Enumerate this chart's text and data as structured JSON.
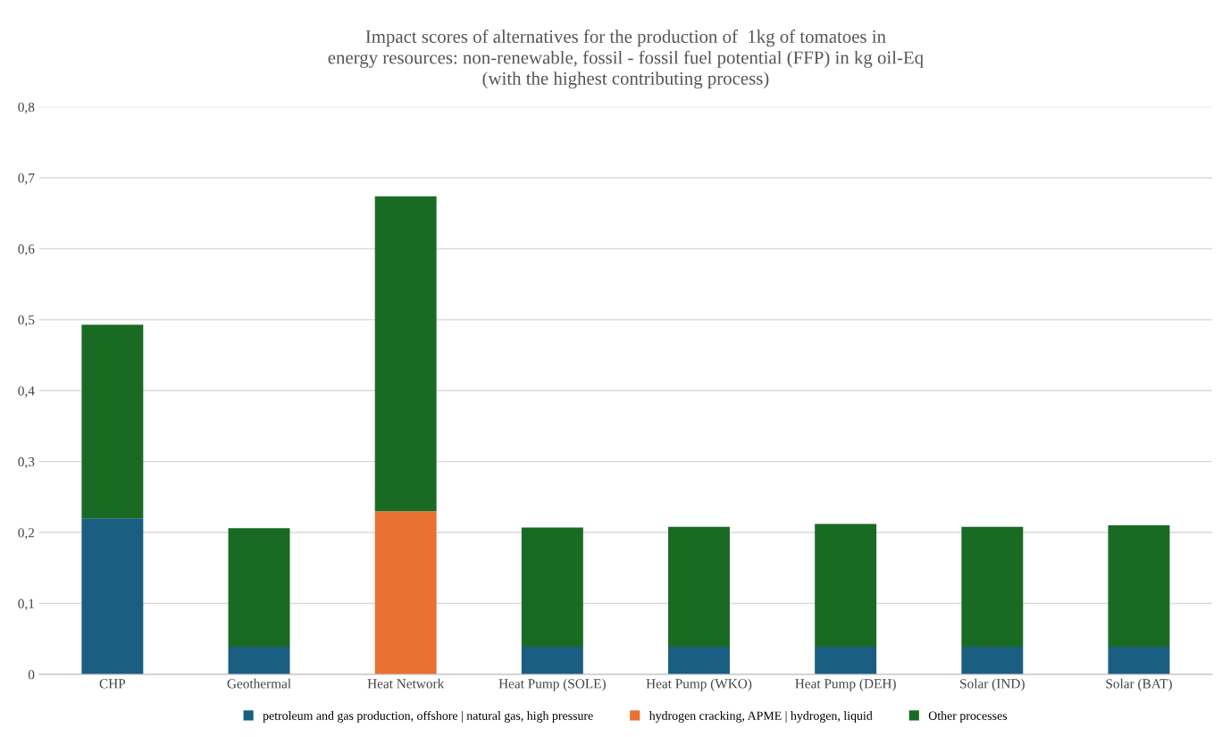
{
  "chart_data": {
    "type": "bar",
    "stacked": true,
    "title": "Impact scores of alternatives for the production of  1kg of tomatoes in\nenergy resources: non-renewable, fossil - fossil fuel potential (FFP) in kg oil-Eq\n(with the highest contributing process)",
    "categories": [
      "CHP",
      "Geothermal",
      "Heat Network",
      "Heat Pump (SOLE)",
      "Heat Pump (WKO)",
      "Heat Pump (DEH)",
      "Solar (IND)",
      "Solar (BAT)"
    ],
    "series": [
      {
        "name": "petroleum and gas production, offshore | natural gas, high pressure",
        "color": "#1a5e82",
        "values": [
          0.22,
          0.039,
          null,
          0.039,
          0.039,
          0.039,
          0.039,
          0.039
        ]
      },
      {
        "name": "hydrogen cracking, APME | hydrogen, liquid",
        "color": "#e97132",
        "values": [
          null,
          null,
          0.23,
          null,
          null,
          null,
          null,
          null
        ]
      },
      {
        "name": "Other processes",
        "color": "#196b24",
        "values": [
          0.273,
          0.167,
          0.444,
          0.168,
          0.169,
          0.173,
          0.169,
          0.171
        ]
      }
    ],
    "ylim": [
      0,
      0.8
    ],
    "yticks": [
      {
        "value": 0,
        "label": "0"
      },
      {
        "value": 0.1,
        "label": "0,1"
      },
      {
        "value": 0.2,
        "label": "0,2"
      },
      {
        "value": 0.3,
        "label": "0,3"
      },
      {
        "value": 0.4,
        "label": "0,4"
      },
      {
        "value": 0.5,
        "label": "0,5"
      },
      {
        "value": 0.6,
        "label": "0,6"
      },
      {
        "value": 0.7,
        "label": "0,7"
      },
      {
        "value": 0.8,
        "label": "0,8"
      }
    ],
    "grid": "y",
    "legend": "bottom"
  }
}
